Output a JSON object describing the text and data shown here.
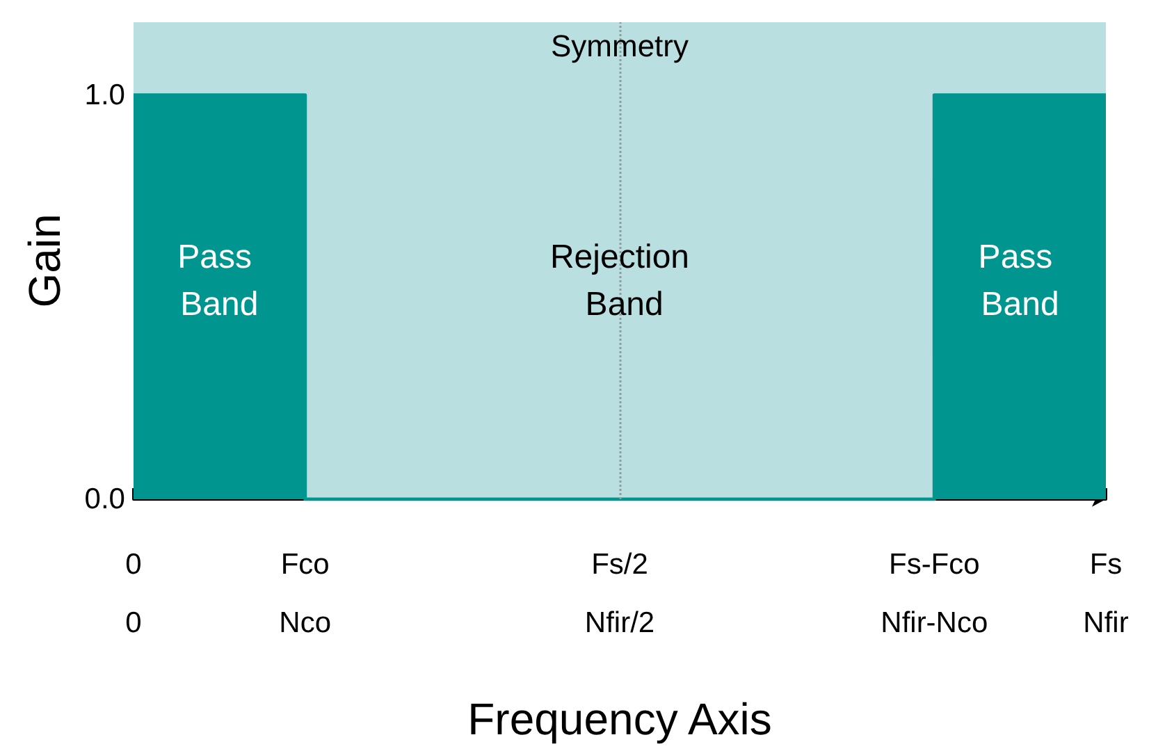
{
  "chart_data": {
    "type": "area",
    "xlabel": "Frequency Axis",
    "ylabel": "Gain",
    "categories": [
      "0\n0",
      null,
      null,
      null,
      null,
      null,
      "Fco\nNco",
      null,
      null,
      null,
      null,
      null,
      null,
      null,
      null,
      null,
      null,
      "Fs/2\nNfir/2",
      null,
      null,
      null,
      null,
      null,
      null,
      null,
      null,
      null,
      null,
      "Fs-Fco\nNfir-Nco",
      null,
      null,
      null,
      null,
      null,
      "Fs\nNfir"
    ],
    "series": [
      {
        "color": "#00968f",
        "values": [
          1,
          1,
          1,
          1,
          1,
          1,
          0,
          0,
          0,
          0,
          0,
          0,
          0,
          0,
          0,
          0,
          0,
          0,
          0,
          0,
          0,
          0,
          0,
          0,
          0,
          0,
          0,
          0,
          1,
          1,
          1,
          1,
          1,
          1,
          1
        ]
      }
    ],
    "ylim": [
      0,
      1.18
    ],
    "yticks": [
      {
        "value": 0,
        "label": "0.0"
      },
      {
        "value": 1,
        "label": "1.0"
      }
    ],
    "bands": [
      {
        "axis": "x",
        "from": "0\n0",
        "to": "Fs\nNfir",
        "color": "#b9dfe0"
      }
    ],
    "ref_lines": [
      {
        "axis": "x",
        "value": "Fs/2\nNfir/2",
        "label": "Symmetry",
        "color": "#999999",
        "line_style": "dotted"
      }
    ],
    "annotations": [
      "Pass Band",
      "Rejection Band",
      "Pass Band"
    ],
    "grid": false
  }
}
